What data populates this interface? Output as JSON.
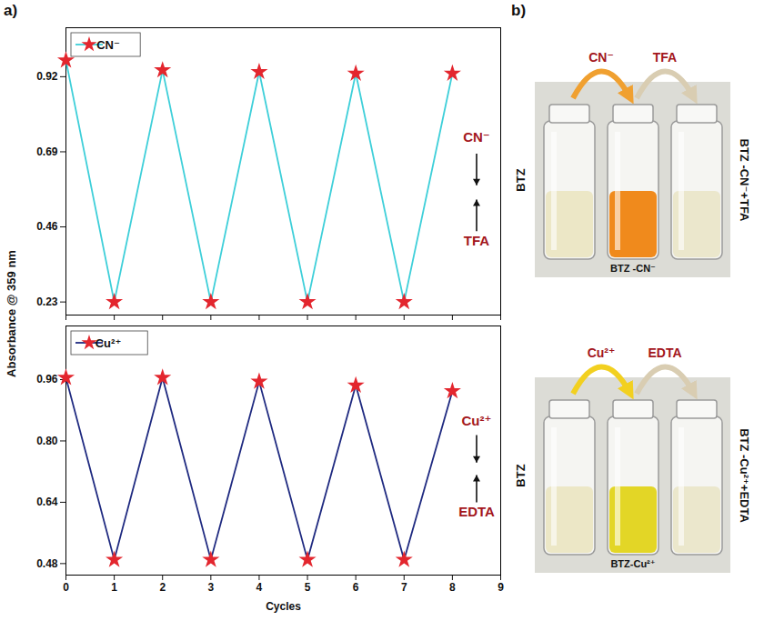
{
  "panel_labels": [
    "a)",
    "b)"
  ],
  "chart_data": [
    {
      "type": "line",
      "ylabel": "Absorbance @ 359 nm",
      "x": [
        0,
        1,
        2,
        3,
        4,
        5,
        6,
        7,
        8
      ],
      "series": [
        {
          "name": "CN⁻",
          "color": "#3ecfd9",
          "marker": "star",
          "values": [
            0.97,
            0.23,
            0.94,
            0.23,
            0.935,
            0.23,
            0.93,
            0.23,
            0.93
          ]
        }
      ],
      "xlim": [
        0,
        9
      ],
      "xticks": [
        0,
        1,
        2,
        3,
        4,
        5,
        6,
        7,
        8,
        9
      ],
      "ylim": [
        0.19,
        1.07
      ],
      "yticks": [
        0.23,
        0.46,
        0.69,
        0.92
      ],
      "tick_labels": "y",
      "legend": "upper left",
      "annotations": [
        {
          "text": "CN⁻",
          "arrow": "down"
        },
        {
          "text": "TFA",
          "arrow": "up"
        }
      ]
    },
    {
      "type": "line",
      "xlabel": "Cycles",
      "x": [
        0,
        1,
        2,
        3,
        4,
        5,
        6,
        7,
        8
      ],
      "series": [
        {
          "name": "Cu²⁺",
          "color": "#1f2a80",
          "marker": "star",
          "values": [
            0.965,
            0.49,
            0.965,
            0.49,
            0.955,
            0.49,
            0.945,
            0.49,
            0.93
          ]
        }
      ],
      "xlim": [
        0,
        9
      ],
      "xticks": [
        0,
        1,
        2,
        3,
        4,
        5,
        6,
        7,
        8,
        9
      ],
      "ylim": [
        0.45,
        1.1
      ],
      "yticks": [
        0.48,
        0.64,
        {
          "value": 0.8,
          "label": "0.80"
        },
        0.96
      ],
      "legend": "upper left",
      "annotations": [
        {
          "text": "Cu²⁺",
          "arrow": "down"
        },
        {
          "text": "EDTA",
          "arrow": "up"
        }
      ]
    }
  ],
  "panel_b": {
    "scenes": [
      {
        "start": "BTZ",
        "reagents": [
          "CN⁻",
          "TFA"
        ],
        "product": "BTZ -CN⁻",
        "result": "BTZ -CN⁻+TFA",
        "vial_colors": [
          "#ece7c6",
          "#f08a1c",
          "#ebe7cc"
        ],
        "arrow_colors": [
          "#f0a030",
          "#d9cdb2"
        ]
      },
      {
        "start": "BTZ",
        "reagents": [
          "Cu²⁺",
          "EDTA"
        ],
        "product": "BTZ-Cu²⁺",
        "result": "BTZ -Cu²⁺+EDTA",
        "vial_colors": [
          "#ece7c6",
          "#e3d626",
          "#ebe7cc"
        ],
        "arrow_colors": [
          "#f2d020",
          "#d9cdb2"
        ]
      }
    ]
  }
}
